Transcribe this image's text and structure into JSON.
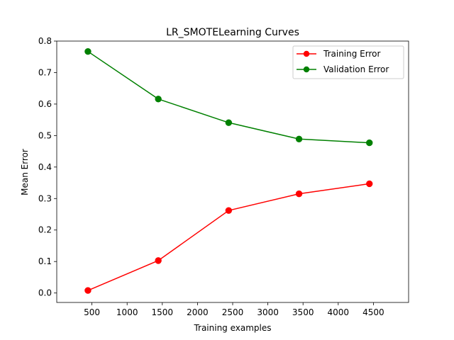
{
  "chart_data": {
    "type": "line",
    "title": "LR_SMOTELearning Curves",
    "xlabel": "Training examples",
    "ylabel": "Mean Error",
    "xlim": [
      0,
      5000
    ],
    "ylim": [
      -0.03,
      0.8
    ],
    "xticks": [
      500,
      1000,
      1500,
      2000,
      2500,
      3000,
      3500,
      4000,
      4500
    ],
    "yticks": [
      0.0,
      0.1,
      0.2,
      0.3,
      0.4,
      0.5,
      0.6,
      0.7,
      0.8
    ],
    "ytick_labels": [
      "0.0",
      "0.1",
      "0.2",
      "0.3",
      "0.4",
      "0.5",
      "0.6",
      "0.7",
      "0.8"
    ],
    "legend_position": "top-right",
    "grid": false,
    "series": [
      {
        "name": "Training Error",
        "color": "#ff0000",
        "marker": "circle",
        "x": [
          443,
          1443,
          2443,
          3443,
          4443
        ],
        "y": [
          0.008,
          0.103,
          0.262,
          0.315,
          0.347
        ]
      },
      {
        "name": "Validation Error",
        "color": "#008000",
        "marker": "circle",
        "x": [
          443,
          1443,
          2443,
          3443,
          4443
        ],
        "y": [
          0.767,
          0.616,
          0.541,
          0.489,
          0.477
        ]
      }
    ]
  }
}
